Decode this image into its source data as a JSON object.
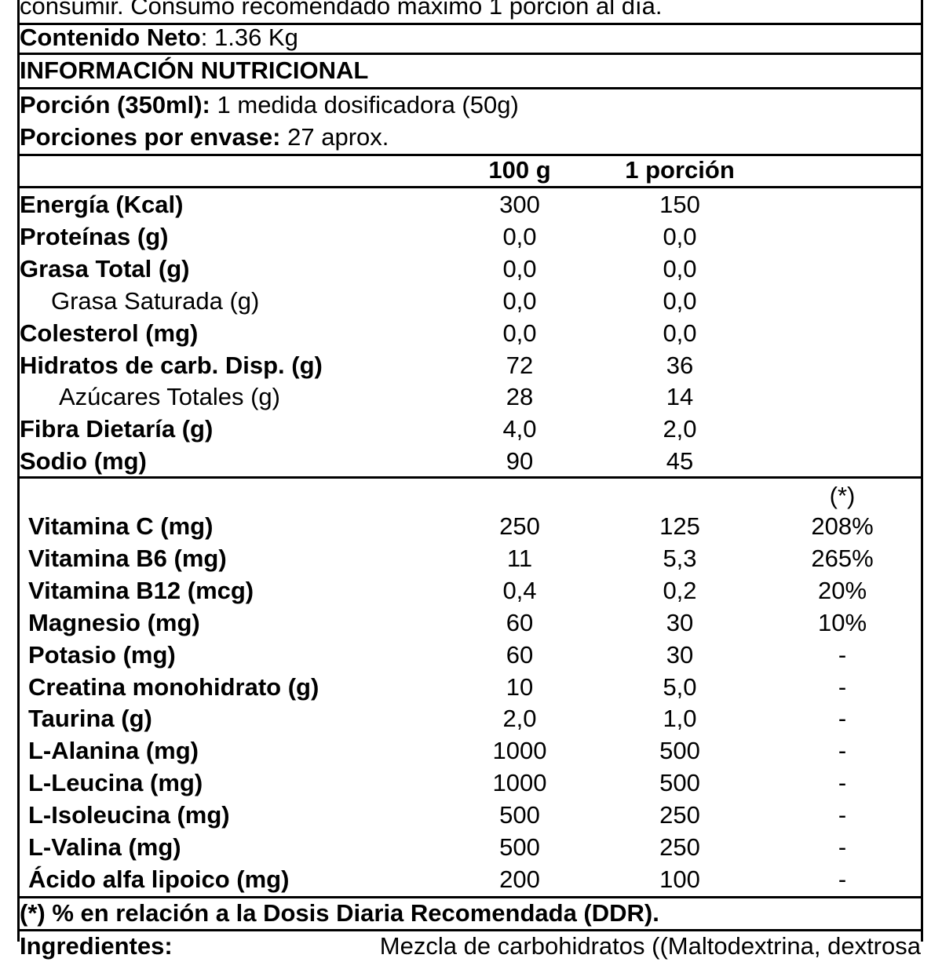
{
  "usage": "consumir. Consumo recomendado máximo 1 porción al día.",
  "net_content": {
    "label": "Contenido Neto",
    "value": ": 1.36 Kg"
  },
  "title": "INFORMACIÓN NUTRICIONAL",
  "serving": {
    "label": "Porción (350ml):",
    "value": "1 medida dosificadora (50g)"
  },
  "servings": {
    "label": "Porciones por envase:",
    "value": "27 aprox."
  },
  "columns": [
    "100 g",
    "1 porción",
    "(*)"
  ],
  "nutrients": [
    [
      "Energía (Kcal)",
      "300",
      "150"
    ],
    [
      "Proteínas (g)",
      "0,0",
      "0,0"
    ],
    [
      "Grasa Total (g)",
      "0,0",
      "0,0"
    ],
    [
      "Grasa Saturada (g)",
      "0,0",
      "0,0"
    ],
    [
      "Colesterol (mg)",
      "0,0",
      "0,0"
    ],
    [
      "Hidratos de carb. Disp. (g)",
      "72",
      "36"
    ],
    [
      "Azúcares Totales (g)",
      "28",
      "14"
    ],
    [
      "Fibra Dietaría (g)",
      "4,0",
      "2,0"
    ],
    [
      "Sodio (mg)",
      "90",
      "45"
    ]
  ],
  "supplements": [
    [
      "Vitamina C (mg)",
      "250",
      "125",
      "208%"
    ],
    [
      "Vitamina B6 (mg)",
      "11",
      "5,3",
      "265%"
    ],
    [
      "Vitamina B12 (mcg)",
      "0,4",
      "0,2",
      "20%"
    ],
    [
      "Magnesio (mg)",
      "60",
      "30",
      "10%"
    ],
    [
      "Potasio (mg)",
      "60",
      "30",
      "-"
    ],
    [
      "Creatina monohidrato (g)",
      "10",
      "5,0",
      "-"
    ],
    [
      "Taurina (g)",
      "2,0",
      "1,0",
      "-"
    ],
    [
      "L-Alanina (mg)",
      "1000",
      "500",
      "-"
    ],
    [
      "L-Leucina (mg)",
      "1000",
      "500",
      "-"
    ],
    [
      "L-Isoleucina (mg)",
      "500",
      "250",
      "-"
    ],
    [
      "L-Valina (mg)",
      "500",
      "250",
      "-"
    ],
    [
      "Ácido alfa lipoico (mg)",
      "200",
      "100",
      "-"
    ]
  ],
  "footnote": "(*) % en relación a la Dosis Diaria Recomendada (DDR).",
  "ingredients": {
    "label": "Ingredientes:",
    "text": "Mezcla de carbohidratos ((Maltodextrina, dextrosa"
  }
}
